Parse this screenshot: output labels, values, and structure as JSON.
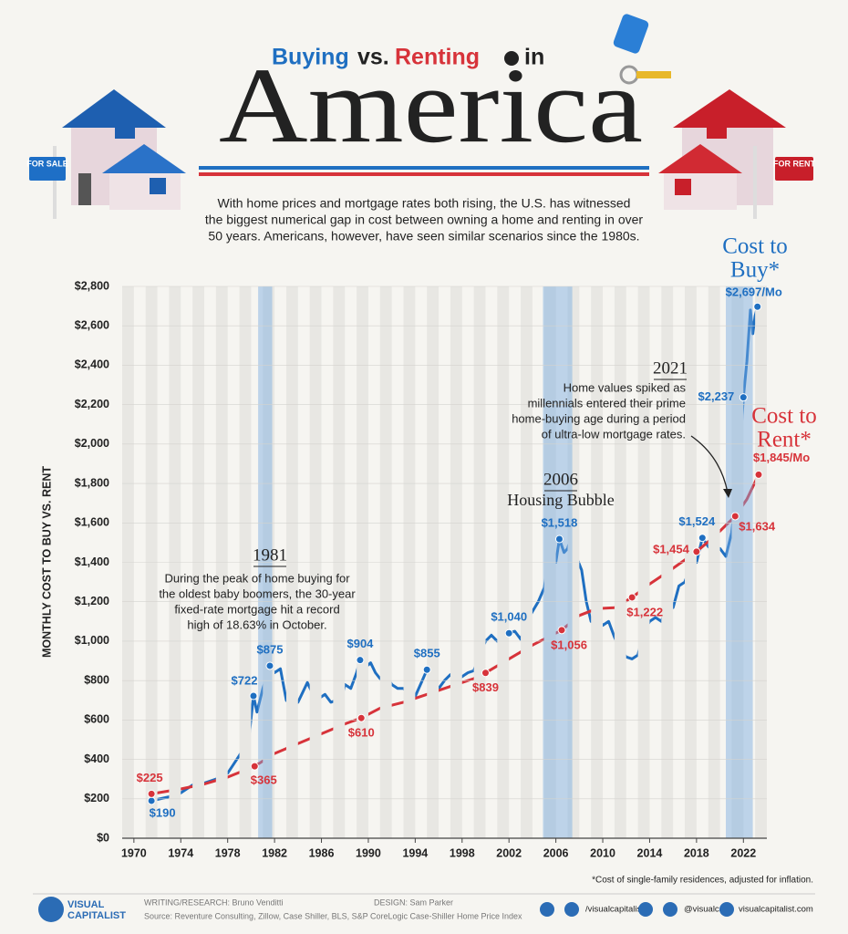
{
  "chart_data": {
    "type": "line",
    "title_parts": [
      "Buying",
      "vs.",
      "Renting",
      "in"
    ],
    "title_main": "America",
    "subtitle": [
      "With home prices and mortgage rates both rising, the U.S. has witnessed",
      "the biggest numerical gap in cost between owning a home and renting in over",
      "50 years. Americans, however, have seen similar scenarios since the 1980s."
    ],
    "house_signs": [
      "FOR SALE",
      "FOR RENT"
    ],
    "y_label": "MONTHLY COST TO BUY VS. RENT",
    "xlim": [
      1969,
      2024
    ],
    "xticks": [
      1970,
      1974,
      1978,
      1982,
      1986,
      1990,
      1994,
      1998,
      2002,
      2006,
      2010,
      2014,
      2018,
      2022
    ],
    "ylim": [
      0,
      2800
    ],
    "yticks": [
      {
        "value": 0,
        "label": "$0"
      },
      {
        "value": 200,
        "label": "$200"
      },
      {
        "value": 400,
        "label": "$400"
      },
      {
        "value": 600,
        "label": "$600"
      },
      {
        "value": 800,
        "label": "$800"
      },
      {
        "value": 1000,
        "label": "$1,000"
      },
      {
        "value": 1200,
        "label": "$1,200"
      },
      {
        "value": 1400,
        "label": "$1,400"
      },
      {
        "value": 1600,
        "label": "$1,600"
      },
      {
        "value": 1800,
        "label": "$1,800"
      },
      {
        "value": 2000,
        "label": "$2,000"
      },
      {
        "value": 2200,
        "label": "$2,200"
      },
      {
        "value": 2400,
        "label": "$2,400"
      },
      {
        "value": 2600,
        "label": "$2,600"
      },
      {
        "value": 2800,
        "label": "$2,800"
      }
    ],
    "highlight_spans": [
      [
        1980.6,
        1981.8
      ],
      [
        2004.9,
        2007.4
      ],
      [
        2020.5,
        2022.8
      ]
    ],
    "series": [
      {
        "name": [
          "Cost to",
          "Buy*"
        ],
        "color": "#1f6fc1",
        "x": [
          1971.5,
          1973,
          1974,
          1975,
          1976,
          1977,
          1978,
          1979,
          1979.8,
          1980.2,
          1980.5,
          1981,
          1981.6,
          1982,
          1982.5,
          1983,
          1983.5,
          1984,
          1984.8,
          1985.2,
          1985.8,
          1986.3,
          1986.8,
          1987.3,
          1987.6,
          1988,
          1988.5,
          1989,
          1989.3,
          1989.8,
          1990.2,
          1990.6,
          1991,
          1991.5,
          1992,
          1992.5,
          1993,
          1993.6,
          1994,
          1994.6,
          1995,
          1995.5,
          1996,
          1996.5,
          1997,
          1997.5,
          1998,
          1998.5,
          1999,
          1999.5,
          2000,
          2000.5,
          2001,
          2001.5,
          2002,
          2002.5,
          2003,
          2003.5,
          2004,
          2004.5,
          2005,
          2005.5,
          2006,
          2006.3,
          2006.7,
          2007,
          2007.3,
          2007.8,
          2008.2,
          2008.6,
          2009,
          2009.5,
          2010,
          2010.5,
          2011,
          2011.5,
          2012,
          2012.5,
          2013,
          2013.5,
          2014,
          2014.5,
          2015,
          2015.5,
          2016,
          2016.5,
          2017,
          2017.5,
          2018,
          2018.5,
          2019,
          2019.5,
          2020,
          2020.5,
          2021,
          2021.5,
          2022,
          2022.3,
          2022.6,
          2022.8,
          2023,
          2023.2
        ],
        "values": [
          190,
          210,
          230,
          270,
          280,
          300,
          330,
          420,
          500,
          722,
          640,
          760,
          875,
          840,
          860,
          700,
          670,
          690,
          790,
          740,
          710,
          730,
          690,
          700,
          680,
          780,
          760,
          840,
          904,
          870,
          890,
          840,
          810,
          830,
          780,
          760,
          760,
          720,
          720,
          800,
          855,
          810,
          760,
          800,
          830,
          800,
          820,
          840,
          850,
          930,
          1000,
          1030,
          1000,
          990,
          1040,
          1050,
          1010,
          1100,
          1150,
          1200,
          1270,
          1450,
          1400,
          1518,
          1450,
          1470,
          1530,
          1420,
          1360,
          1200,
          1100,
          1130,
          1080,
          1100,
          1020,
          960,
          920,
          910,
          930,
          1050,
          1100,
          1120,
          1100,
          1180,
          1170,
          1280,
          1300,
          1380,
          1400,
          1524,
          1480,
          1450,
          1470,
          1430,
          1550,
          1800,
          2237,
          2420,
          2680,
          2560,
          2650,
          2697
        ],
        "labeled_points": [
          {
            "x": 1971.5,
            "value": 190,
            "label": "$190"
          },
          {
            "x": 1980.2,
            "value": 722,
            "label": "$722"
          },
          {
            "x": 1981.6,
            "value": 875,
            "label": "$875"
          },
          {
            "x": 1989.3,
            "value": 904,
            "label": "$904"
          },
          {
            "x": 1995,
            "value": 855,
            "label": "$855"
          },
          {
            "x": 2002,
            "value": 1040,
            "label": "$1,040"
          },
          {
            "x": 2006.3,
            "value": 1518,
            "label": "$1,518"
          },
          {
            "x": 2018.5,
            "value": 1524,
            "label": "$1,524"
          },
          {
            "x": 2022,
            "value": 2237,
            "label": "$2,237"
          },
          {
            "x": 2023.2,
            "value": 2697,
            "label": "$2,697/Mo"
          }
        ]
      },
      {
        "name": [
          "Cost to",
          "Rent*"
        ],
        "color": "#d7333a",
        "x": [
          1971.5,
          1974,
          1976,
          1978,
          1980.3,
          1982,
          1984,
          1986,
          1988,
          1989.4,
          1991,
          1993,
          1995,
          1997,
          1999,
          2000,
          2002,
          2004,
          2006.5,
          2008,
          2009.5,
          2011,
          2012.5,
          2014,
          2016,
          2018,
          2019.5,
          2021.3,
          2022.3,
          2023.3
        ],
        "values": [
          225,
          250,
          275,
          310,
          365,
          430,
          480,
          530,
          580,
          610,
          660,
          690,
          730,
          770,
          810,
          839,
          910,
          980,
          1056,
          1130,
          1165,
          1170,
          1222,
          1290,
          1370,
          1454,
          1530,
          1634,
          1720,
          1845
        ],
        "labeled_points": [
          {
            "x": 1971.5,
            "value": 225,
            "label": "$225"
          },
          {
            "x": 1980.3,
            "value": 365,
            "label": "$365"
          },
          {
            "x": 1989.4,
            "value": 610,
            "label": "$610"
          },
          {
            "x": 2000,
            "value": 839,
            "label": "$839"
          },
          {
            "x": 2006.5,
            "value": 1056,
            "label": "$1,056"
          },
          {
            "x": 2012.5,
            "value": 1222,
            "label": "$1,222"
          },
          {
            "x": 2018,
            "value": 1454,
            "label": "$1,454"
          },
          {
            "x": 2021.3,
            "value": 1634,
            "label": "$1,634"
          },
          {
            "x": 2023.3,
            "value": 1845,
            "label": "$1,845/Mo"
          }
        ]
      }
    ],
    "annotations": [
      {
        "title": "1981",
        "lines": [
          "During the peak of home buying for",
          "the oldest baby boomers, the 30-year",
          "fixed-rate mortgage hit a record",
          "high of 18.63% in October."
        ]
      },
      {
        "title": "2006",
        "lines": [
          "Housing Bubble"
        ]
      },
      {
        "title": "2021",
        "lines": [
          "Home values spiked as",
          "millennials entered their prime",
          "home-buying age during a period",
          "of ultra-low mortgage rates."
        ]
      }
    ],
    "footnote": "*Cost of single-family residences, adjusted for inflation.",
    "footer": {
      "brand": [
        "VISUAL",
        "CAPITALIST"
      ],
      "credits": [
        "WRITING/RESEARCH: Bruno Venditti",
        "DESIGN: Sam Parker"
      ],
      "source": "Source: Reventure Consulting, Zillow, Case Shiller, BLS, S&P CoreLogic Case-Shiller Home Price Index",
      "social": [
        "/visualcapitalist",
        "@visualcap",
        "visualcapitalist.com"
      ]
    }
  }
}
